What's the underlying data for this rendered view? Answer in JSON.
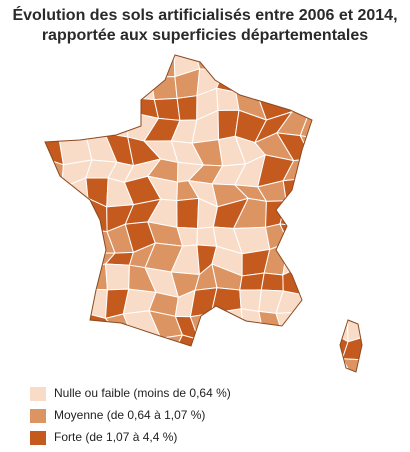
{
  "header": {
    "title": [
      "Évolution des sols artificialisés entre 2006 et 2014,",
      "rapportée aux superficies départementales"
    ]
  },
  "legend": {
    "items": [
      {
        "label": "Nulle ou faible (moins de 0,64 %)",
        "color": "#f8dcc7"
      },
      {
        "label": "Moyenne (de 0,64 à 1,07 %)",
        "color": "#dd9463"
      },
      {
        "label": "Forte (de 1,07 à 4,4 %)",
        "color": "#c45a1d"
      }
    ]
  }
}
